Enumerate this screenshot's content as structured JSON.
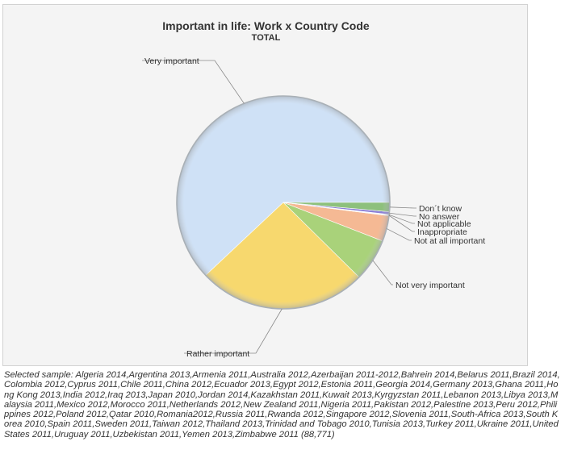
{
  "chart_data": {
    "type": "pie",
    "title": "Important in life: Work x Country Code",
    "subtitle": "TOTAL",
    "slices": [
      {
        "label": "Very important",
        "value": 62.0,
        "color": "#cfe1f6"
      },
      {
        "label": "Rather important",
        "value": 25.6,
        "color": "#f7d86e"
      },
      {
        "label": "Not very important",
        "value": 6.5,
        "color": "#a9d27a"
      },
      {
        "label": "Not at all important",
        "value": 3.9,
        "color": "#f5b994"
      },
      {
        "label": "Inappropriate",
        "value": 0.1,
        "color": "#cccccc"
      },
      {
        "label": "Not applicable",
        "value": 0.1,
        "color": "#b0b0b0"
      },
      {
        "label": "No answer",
        "value": 0.4,
        "color": "#8b7fd6"
      },
      {
        "label": "Don´t know",
        "value": 1.4,
        "color": "#8dc07c"
      }
    ],
    "legend": "none"
  },
  "footnote": "Selected sample: Algeria 2014,Argentina 2013,Armenia 2011,Australia 2012,Azerbaijan 2011-2012,Bahrein 2014,Belarus 2011,Brazil 2014,Colombia 2012,Cyprus 2011,Chile 2011,China 2012,Ecuador 2013,Egypt 2012,Estonia 2011,Georgia 2014,Germany 2013,Ghana 2011,Hong Kong 2013,India 2012,Iraq 2013,Japan 2010,Jordan 2014,Kazakhstan 2011,Kuwait 2013,Kyrgyzstan 2011,Lebanon 2013,Libya 2013,Malaysia 2011,Mexico 2012,Morocco 2011,Netherlands 2012,New Zealand 2011,Nigeria 2011,Pakistan 2012,Palestine 2013,Peru 2012,Philippines 2012,Poland 2012,Qatar 2010,Romania2012,Russia 2011,Rwanda 2012,Singapore 2012,Slovenia 2011,South-Africa 2013,South Korea 2010,Spain 2011,Sweden 2011,Taiwan 2012,Thailand 2013,Trinidad and Tobago 2010,Tunisia 2013,Turkey 2011,Ukraine 2011,United States 2011,Uruguay 2011,Uzbekistan 2011,Yemen 2013,Zimbabwe 2011 (88,771)"
}
